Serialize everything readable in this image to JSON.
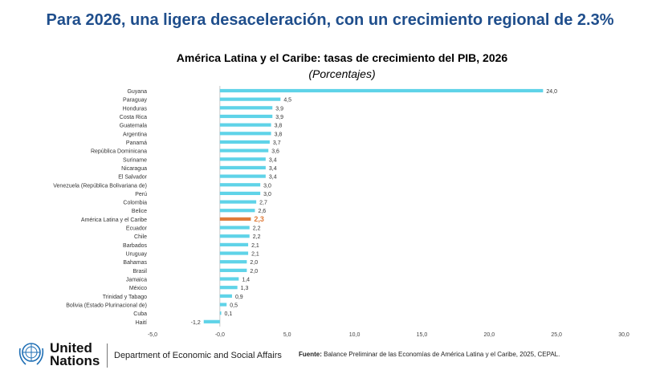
{
  "header": {
    "slide_title": "Para 2026, una ligera desaceleración, con un crecimiento regional de 2.3%"
  },
  "footer": {
    "org_line1": "United",
    "org_line2": "Nations",
    "department": "Department of Economic and Social Affairs",
    "source_label": "Fuente:",
    "source_text": "Balance Preliminar de las Economías de América Latina y  el Caribe, 2025, CEPAL."
  },
  "colors": {
    "bar": "#5fd3e8",
    "highlight": "#e07b39",
    "title": "#1f4e8c"
  },
  "chart_data": {
    "type": "bar",
    "orientation": "horizontal",
    "title": "América Latina y el Caribe: tasas de crecimiento del PIB,  2026",
    "subtitle": "(Porcentajes)",
    "xlim": [
      -5,
      30
    ],
    "x_ticks": [
      "-5,0",
      "-0,0",
      "5,0",
      "10,0",
      "15,0",
      "20,0",
      "25,0",
      "30,0"
    ],
    "highlight_category": "América Latina y el Caribe",
    "categories": [
      "Guyana",
      "Paraguay",
      "Honduras",
      "Costa Rica",
      "Guatemala",
      "Argentina",
      "Panamá",
      "República Dominicana",
      "Suriname",
      "Nicaragua",
      "El Salvador",
      "Venezuela (República Bolivariana de)",
      "Perú",
      "Colombia",
      "Belice",
      "América Latina y el Caribe",
      "Ecuador",
      "Chile",
      "Barbados",
      "Uruguay",
      "Bahamas",
      "Brasil",
      "Jamaica",
      "México",
      "Trinidad y Tabago",
      "Bolivia (Estado Plurinacional de)",
      "Cuba",
      "Haití"
    ],
    "values": [
      24.0,
      4.5,
      3.9,
      3.9,
      3.8,
      3.8,
      3.7,
      3.6,
      3.4,
      3.4,
      3.4,
      3.0,
      3.0,
      2.7,
      2.6,
      2.3,
      2.2,
      2.2,
      2.1,
      2.1,
      2.0,
      2.0,
      1.4,
      1.3,
      0.9,
      0.5,
      0.1,
      -1.2
    ],
    "value_labels": [
      "24,0",
      "4,5",
      "3,9",
      "3,9",
      "3,8",
      "3,8",
      "3,7",
      "3,6",
      "3,4",
      "3,4",
      "3,4",
      "3,0",
      "3,0",
      "2,7",
      "2,6",
      "2,3",
      "2,2",
      "2,2",
      "2,1",
      "2,1",
      "2,0",
      "2,0",
      "1,4",
      "1,3",
      "0,9",
      "0,5",
      "0,1",
      "-1,2"
    ],
    "grid": false,
    "legend": "none"
  }
}
